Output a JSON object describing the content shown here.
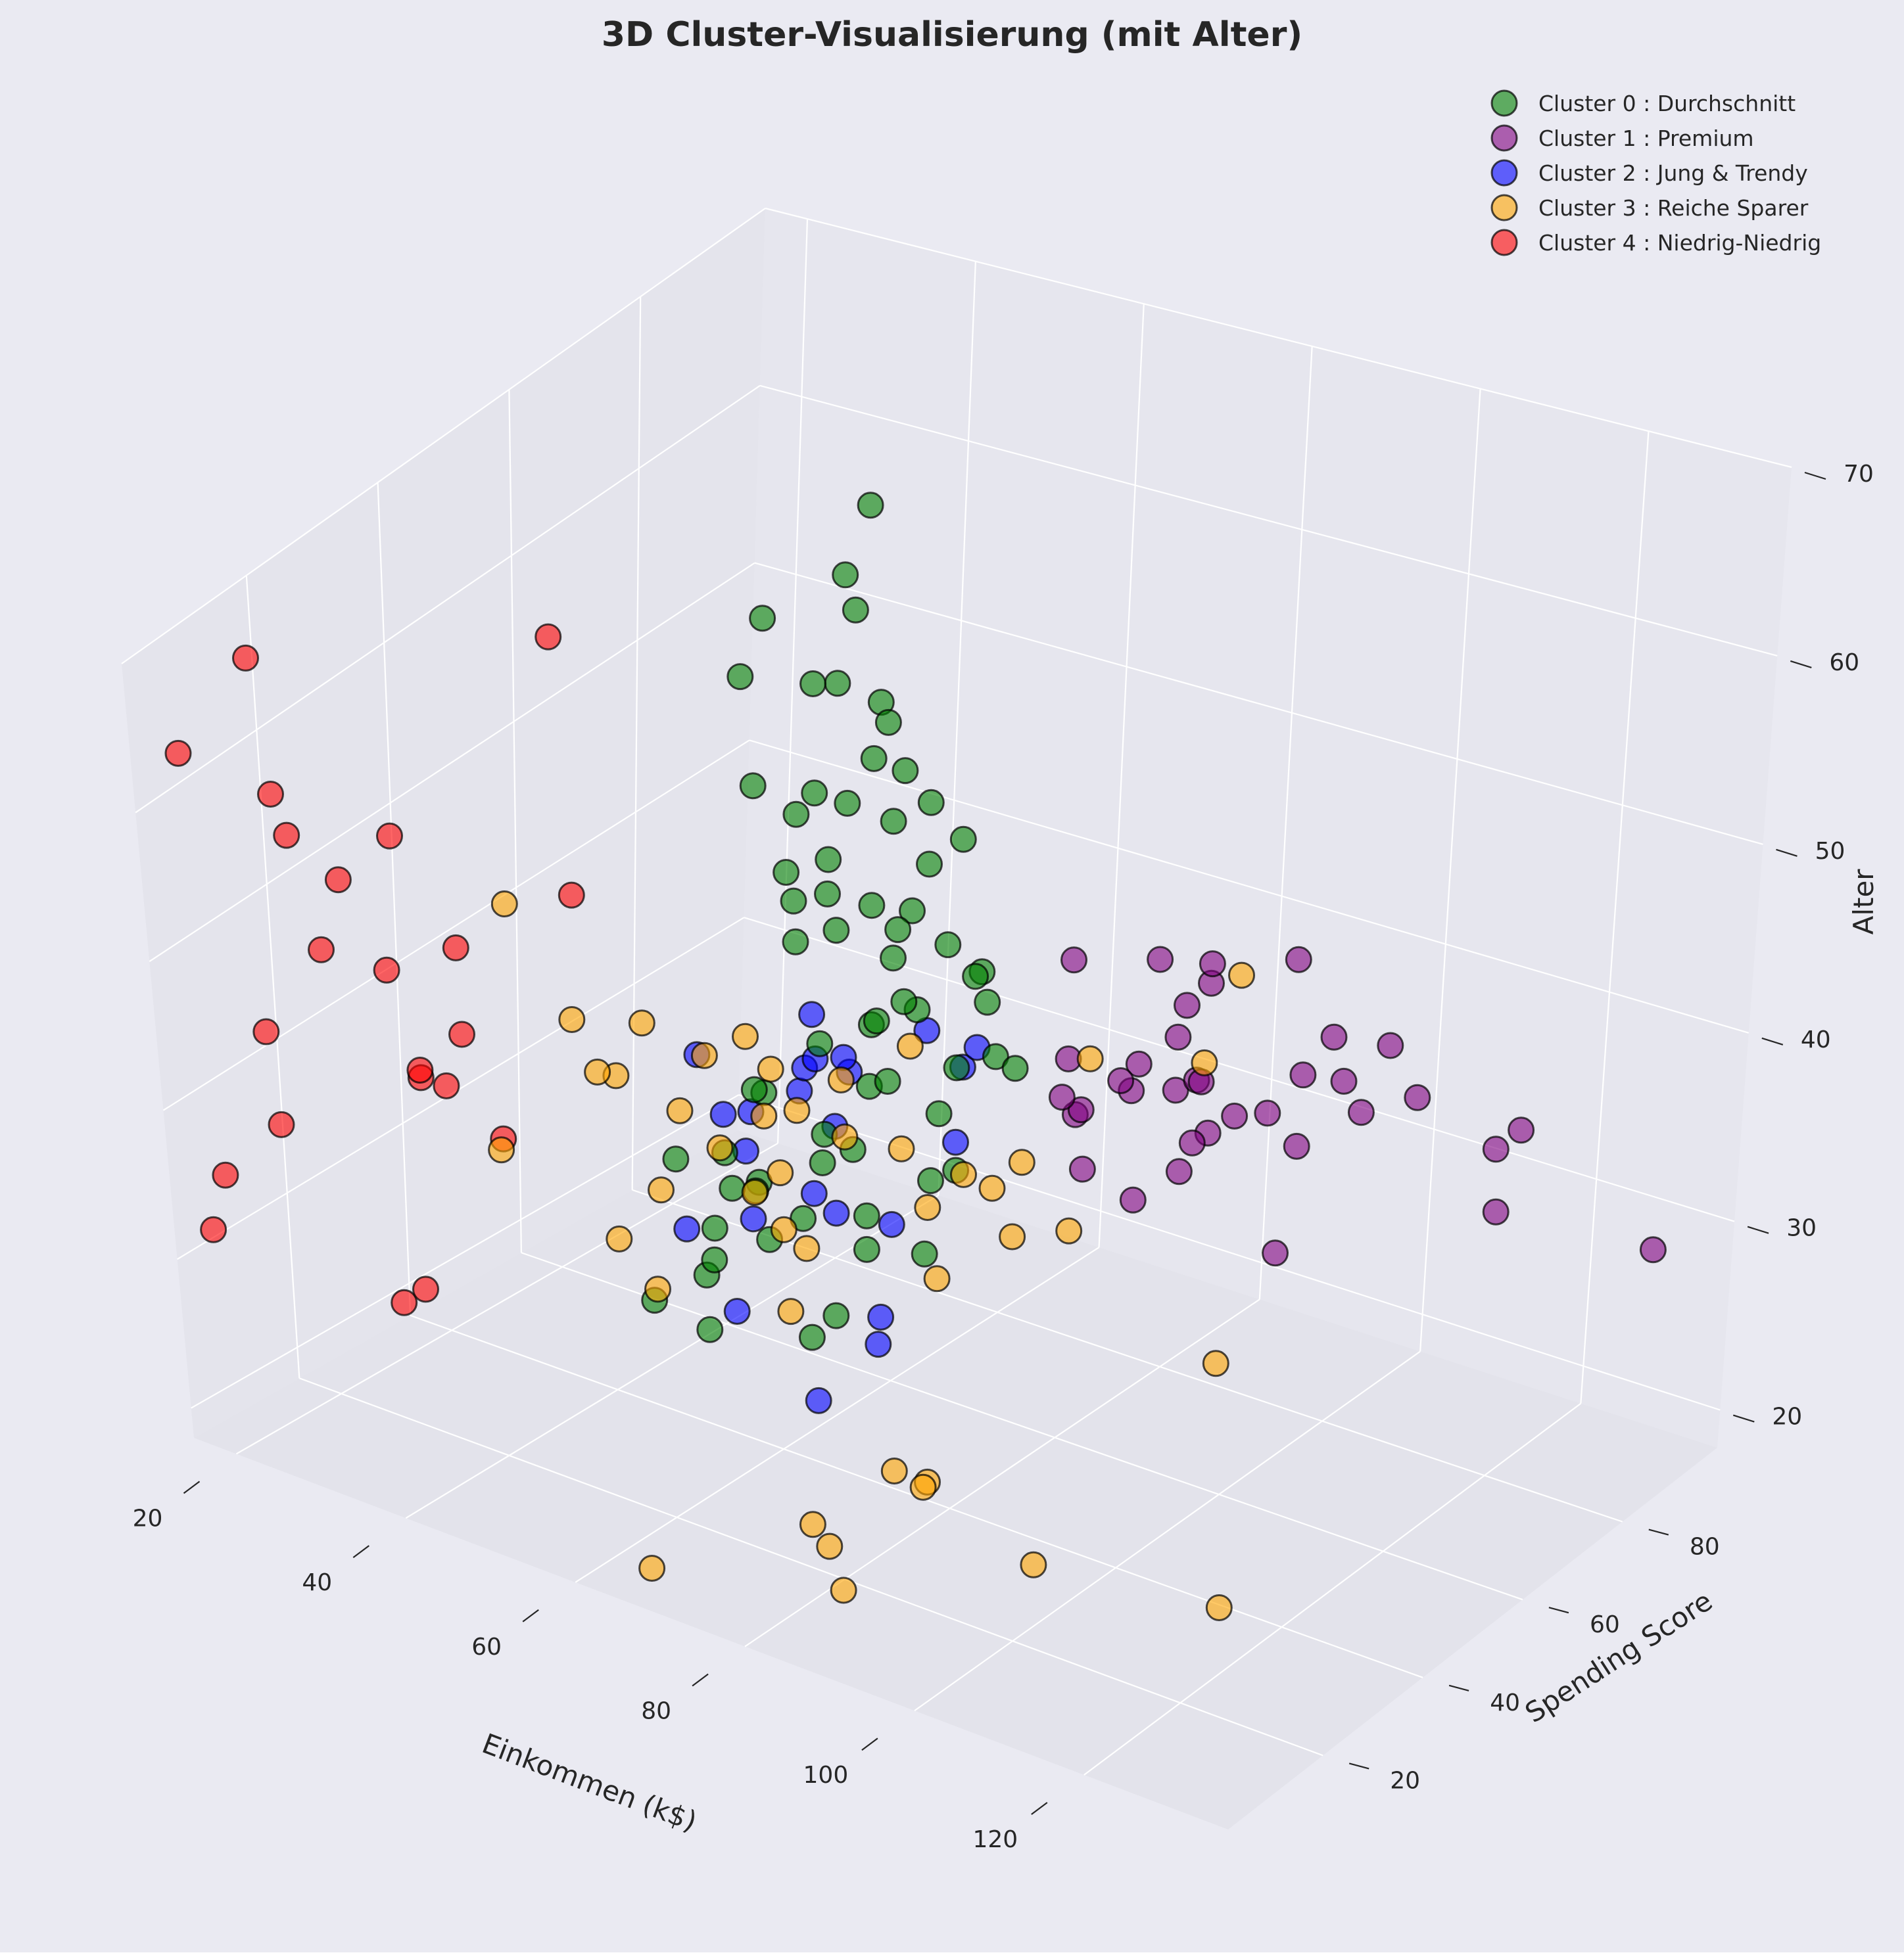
{
  "chart_data": {
    "type": "scatter",
    "title": "3D Cluster-Visualisierung (mit Alter)",
    "xlabel": "Einkommen (k$)",
    "ylabel": "Spending Score",
    "zlabel": "Alter",
    "xlim": [
      15,
      137
    ],
    "ylim": [
      1,
      99
    ],
    "zlim": [
      18,
      70
    ],
    "x_ticks": [
      20,
      40,
      60,
      80,
      100,
      120,
      140
    ],
    "y_ticks": [
      0,
      20,
      40,
      60,
      80,
      100
    ],
    "z_ticks": [
      20,
      30,
      40,
      50,
      60,
      70
    ],
    "grid": true,
    "legend_position": "top-right",
    "series": [
      {
        "name": "Cluster 0 : Durchschnitt",
        "color": "#008000",
        "x": [
          54,
          54,
          54,
          55,
          57,
          57,
          58,
          59,
          60,
          60,
          60,
          60,
          61,
          62,
          62,
          62,
          62,
          63,
          63,
          63,
          63,
          64,
          64,
          65,
          65,
          65,
          67,
          67,
          67,
          67,
          69,
          69,
          70,
          71,
          71,
          72,
          73,
          73,
          74,
          75,
          76,
          77,
          78,
          78,
          40,
          42,
          43,
          44,
          46,
          47,
          48,
          48,
          49,
          50,
          51,
          52,
          53,
          53,
          54,
          54,
          58,
          60,
          61,
          62,
          63,
          64,
          65,
          66
        ],
        "y": [
          47,
          55,
          59,
          42,
          51,
          41,
          46,
          55,
          49,
          52,
          56,
          42,
          42,
          59,
          46,
          55,
          41,
          52,
          46,
          43,
          48,
          55,
          51,
          49,
          56,
          52,
          47,
          54,
          50,
          56,
          58,
          47,
          52,
          56,
          43,
          52,
          43,
          49,
          55,
          56,
          53,
          46,
          55,
          48,
          47,
          55,
          52,
          60,
          51,
          41,
          46,
          55,
          52,
          42,
          49,
          56,
          42,
          58,
          47,
          59,
          56,
          48,
          44,
          53,
          51,
          60,
          48,
          58
        ],
        "z": [
          65,
          59,
          58,
          63,
          54,
          57,
          49,
          64,
          51,
          67,
          70,
          52,
          48,
          54,
          50,
          59,
          56,
          48,
          48,
          42,
          55,
          46,
          57,
          42,
          47,
          59,
          43,
          42,
          54,
          50,
          38,
          47,
          55,
          52,
          41,
          47,
          46,
          38,
          45,
          40,
          44,
          36,
          40,
          47,
          22,
          25,
          23,
          27,
          31,
          33,
          26,
          34,
          29,
          23,
          36,
          27,
          32,
          30,
          28,
          21,
          32,
          35,
          24,
          37,
          30,
          26,
          29,
          31
        ]
      },
      {
        "name": "Cluster 1 : Premium",
        "color": "#800080",
        "x": [
          69,
          70,
          71,
          71,
          72,
          73,
          73,
          74,
          75,
          76,
          77,
          77,
          78,
          78,
          78,
          78,
          79,
          81,
          85,
          86,
          87,
          87,
          87,
          88,
          88,
          93,
          97,
          98,
          99,
          101,
          103,
          103,
          113,
          120,
          126,
          137
        ],
        "y": [
          91,
          77,
          95,
          75,
          75,
          71,
          88,
          73,
          72,
          93,
          87,
          97,
          74,
          90,
          88,
          76,
          89,
          83,
          75,
          95,
          63,
          75,
          92,
          86,
          69,
          90,
          86,
          88,
          97,
          68,
          85,
          69,
          91,
          79,
          74,
          83
        ],
        "z": [
          31,
          40,
          29,
          35,
          32,
          34,
          38,
          33,
          30,
          36,
          27,
          28,
          35,
          38,
          32,
          34,
          29,
          30,
          40,
          28,
          32,
          36,
          39,
          32,
          40,
          36,
          35,
          33,
          32,
          30,
          38,
          40,
          29,
          36,
          39,
          32
        ]
      },
      {
        "name": "Cluster 2 : Jung & Trendy",
        "color": "#0000ff",
        "x": [
          39,
          39,
          40,
          40,
          40,
          42,
          43,
          43,
          44,
          46,
          46,
          48,
          48,
          54,
          54,
          54,
          57,
          59,
          60,
          62,
          63,
          64,
          64,
          65
        ],
        "y": [
          65,
          61,
          73,
          55,
          75,
          50,
          60,
          75,
          68,
          73,
          56,
          69,
          64,
          59,
          55,
          41,
          76,
          74,
          66,
          72,
          42,
          52,
          54,
          50
        ],
        "z": [
          27,
          30,
          29,
          35,
          33,
          26,
          31,
          27,
          32,
          31,
          26,
          33,
          34,
          27,
          29,
          25,
          28,
          33,
          37,
          35,
          21,
          24,
          29,
          23
        ],
        "comment": ""
      },
      {
        "name": "Cluster 3 : Reiche Sparer",
        "color": "#ffa500",
        "x": [
          40,
          46,
          54,
          54,
          57,
          58,
          59,
          60,
          60,
          62,
          63,
          64,
          65,
          66,
          67,
          69,
          70,
          71,
          71,
          72,
          73,
          74,
          75,
          77,
          78,
          78,
          79,
          81,
          85,
          86,
          87,
          87,
          88,
          88,
          93,
          97,
          98,
          99,
          101,
          103,
          103,
          113,
          120,
          126,
          137
        ],
        "y": [
          34,
          13,
          5,
          26,
          32,
          15,
          39,
          10,
          13,
          36,
          14,
          29,
          36,
          6,
          30,
          17,
          26,
          4,
          35,
          34,
          5,
          24,
          14,
          22,
          15,
          35,
          16,
          35,
          12,
          29,
          19,
          25,
          36,
          31,
          15,
          29,
          8,
          23,
          34,
          27,
          19,
          36,
          32,
          18,
          1
        ],
        "z": [
          42,
          40,
          59,
          46,
          43,
          36,
          38,
          48,
          47,
          42,
          34,
          46,
          40,
          19,
          38,
          43,
          36,
          44,
          43,
          40,
          49,
          36,
          42,
          19,
          35,
          40,
          22,
          37,
          20,
          35,
          26,
          24,
          39,
          41,
          27,
          20,
          56,
          41,
          49,
          41,
          47,
          50,
          57,
          25,
          45
        ]
      },
      {
        "name": "Cluster 4 : Niedrig-Niedrig",
        "color": "#ff0000",
        "x": [
          15,
          16,
          17,
          18,
          19,
          19,
          20,
          20,
          21,
          23,
          24,
          25,
          28,
          28,
          29,
          30,
          33,
          33,
          34,
          37,
          38,
          39
        ],
        "y": [
          39,
          6,
          40,
          6,
          3,
          14,
          15,
          13,
          35,
          29,
          35,
          5,
          14,
          32,
          31,
          4,
          4,
          14,
          17,
          26,
          35,
          36
        ],
        "z": [
          19,
          31,
          20,
          35,
          64,
          67,
          58,
          37,
          35,
          52,
          35,
          46,
          54,
          45,
          40,
          60,
          53,
          49,
          42,
          36,
          65,
          49
        ]
      }
    ]
  }
}
